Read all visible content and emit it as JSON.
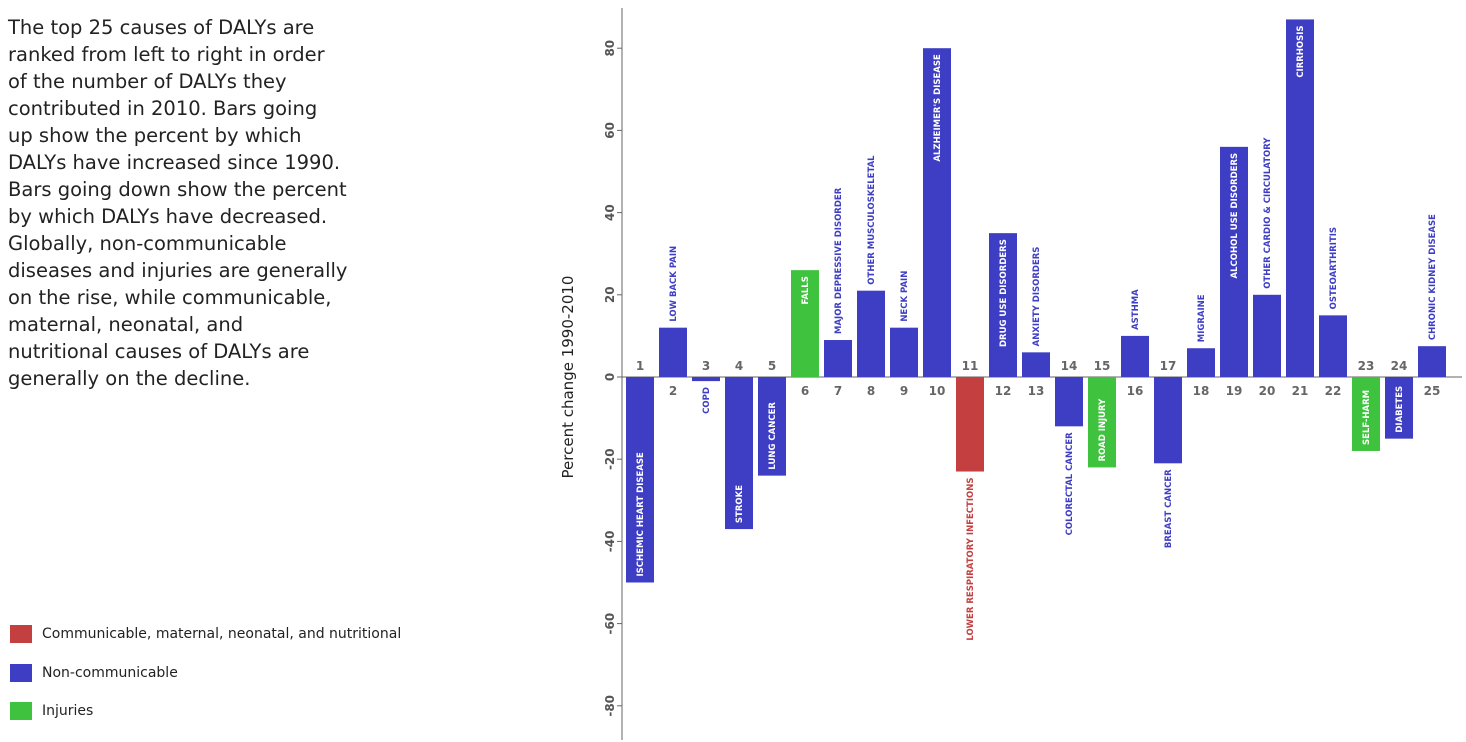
{
  "description": "The top 25 causes of DALYs are ranked from left to right in order of the number of DALYs they contributed in 2010. Bars going up show the percent by which DALYs have increased since 1990. Bars going down show the percent by which DALYs have decreased. Globally, non-communicable diseases and injuries are generally on the rise, while communicable, maternal, neonatal, and nutritional causes of DALYs are generally on the decline.",
  "colors": {
    "communicable": "#c44040",
    "noncommunicable": "#3e3ec4",
    "injuries": "#3fc33f"
  },
  "legend": [
    {
      "key": "communicable",
      "label": "Communicable, maternal, neonatal, and nutritional"
    },
    {
      "key": "noncommunicable",
      "label": "Non-communicable"
    },
    {
      "key": "injuries",
      "label": "Injuries"
    }
  ],
  "chart_data": {
    "type": "bar",
    "ylabel": "Percent change 1990-2010",
    "ylim": [
      -88,
      90
    ],
    "yticks": [
      -80,
      -60,
      -40,
      -20,
      0,
      20,
      40,
      60,
      80
    ],
    "grid": false,
    "categories": [
      "1",
      "2",
      "3",
      "4",
      "5",
      "6",
      "7",
      "8",
      "9",
      "10",
      "11",
      "12",
      "13",
      "14",
      "15",
      "16",
      "17",
      "18",
      "19",
      "20",
      "21",
      "22",
      "23",
      "24",
      "25"
    ],
    "labels": [
      "ISCHEMIC HEART DISEASE",
      "LOW BACK PAIN",
      "COPD",
      "STROKE",
      "LUNG CANCER",
      "FALLS",
      "MAJOR DEPRESSIVE DISORDER",
      "OTHER MUSCULOSKELETAL",
      "NECK PAIN",
      "ALZHEIMER'S DISEASE",
      "LOWER RESPIRATORY INFECTIONS",
      "DRUG USE DISORDERS",
      "ANXIETY DISORDERS",
      "COLORECTAL CANCER",
      "ROAD INJURY",
      "ASTHMA",
      "BREAST CANCER",
      "MIGRAINE",
      "ALCOHOL USE DISORDERS",
      "OTHER CARDIO & CIRCULATORY",
      "CIRRHOSIS",
      "OSTEOARTHRITIS",
      "SELF-HARM",
      "DIABETES",
      "CHRONIC KIDNEY DISEASE"
    ],
    "groups": [
      "noncommunicable",
      "noncommunicable",
      "noncommunicable",
      "noncommunicable",
      "noncommunicable",
      "injuries",
      "noncommunicable",
      "noncommunicable",
      "noncommunicable",
      "noncommunicable",
      "communicable",
      "noncommunicable",
      "noncommunicable",
      "noncommunicable",
      "injuries",
      "noncommunicable",
      "noncommunicable",
      "noncommunicable",
      "noncommunicable",
      "noncommunicable",
      "noncommunicable",
      "noncommunicable",
      "injuries",
      "noncommunicable",
      "noncommunicable"
    ],
    "values": [
      -50,
      12,
      -1,
      -37,
      -24,
      26,
      9,
      21,
      12,
      80,
      -23,
      35,
      6,
      -12,
      -22,
      10,
      -21,
      7,
      56,
      20,
      87,
      15,
      -18,
      -15,
      7.5
    ]
  }
}
